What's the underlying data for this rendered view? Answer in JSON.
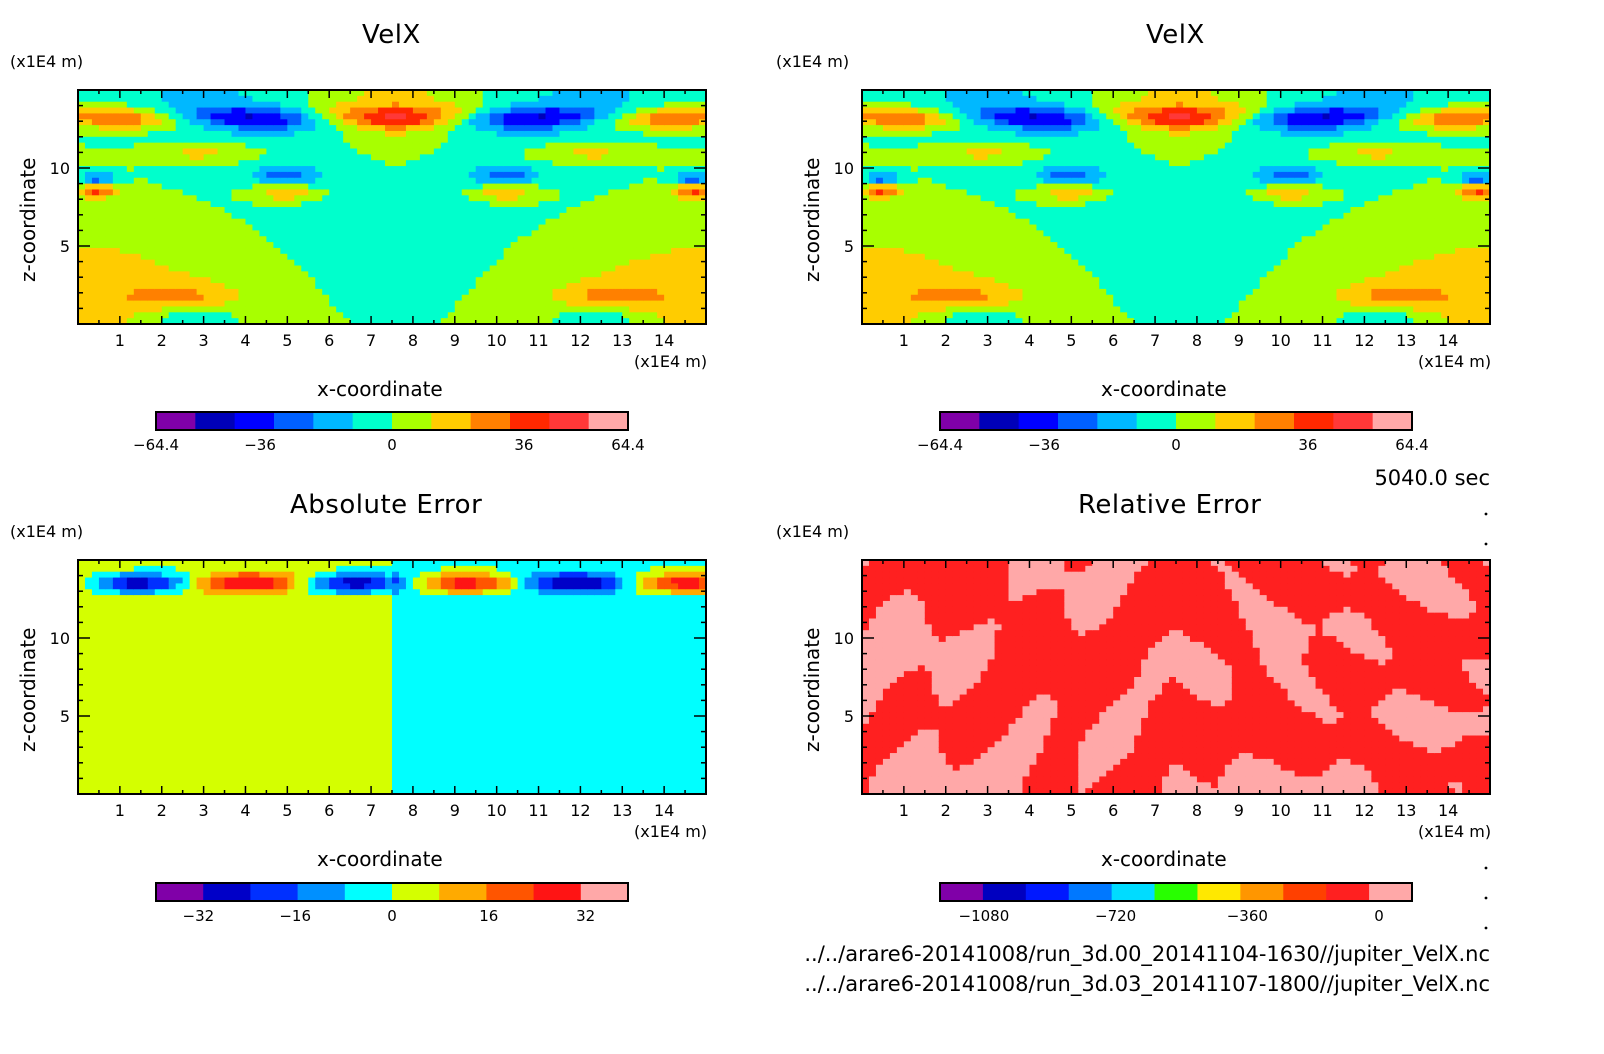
{
  "info": {
    "time_label": "5040.0 sec",
    "files": [
      "../../arare6-20141008/run_3d.00_20141104-1630//jupiter_VelX.nc",
      "../../arare6-20141008/run_3d.03_20141107-1800//jupiter_VelX.nc"
    ]
  },
  "chart_data": [
    {
      "type": "heatmap",
      "title": "VelX",
      "xlabel": "x-coordinate",
      "ylabel": "z-coordinate",
      "x_unit": "(x1E4 m)",
      "y_unit": "(x1E4 m)",
      "xlim": [
        0,
        15
      ],
      "ylim": [
        0,
        15
      ],
      "xticks": [
        1,
        2,
        3,
        4,
        5,
        6,
        7,
        8,
        9,
        10,
        11,
        12,
        13,
        14
      ],
      "yticks": [
        5,
        10
      ],
      "colorbar": {
        "ticks": [
          "-64.4",
          "-36",
          "0",
          "36",
          "64.4"
        ],
        "tick_values": [
          -64.4,
          -36,
          0,
          36,
          64.4
        ],
        "range": [
          -64.4,
          64.4
        ],
        "levels": [
          -64.4,
          -58,
          -45,
          -32,
          -19,
          -6,
          6,
          19,
          32,
          45,
          58,
          64.4
        ],
        "colors": [
          "#8000a8",
          "#0000b8",
          "#0000ff",
          "#0060ff",
          "#00b8ff",
          "#00ffcc",
          "#a8ff00",
          "#ffcc00",
          "#ff8000",
          "#ff2800",
          "#ff3838",
          "#ffa8a8"
        ]
      }
    },
    {
      "type": "heatmap",
      "title": "VelX",
      "xlabel": "x-coordinate",
      "ylabel": "z-coordinate",
      "x_unit": "(x1E4 m)",
      "y_unit": "(x1E4 m)",
      "xlim": [
        0,
        15
      ],
      "ylim": [
        0,
        15
      ],
      "xticks": [
        1,
        2,
        3,
        4,
        5,
        6,
        7,
        8,
        9,
        10,
        11,
        12,
        13,
        14
      ],
      "yticks": [
        5,
        10
      ],
      "colorbar": {
        "ticks": [
          "-64.4",
          "-36",
          "0",
          "36",
          "64.4"
        ],
        "tick_values": [
          -64.4,
          -36,
          0,
          36,
          64.4
        ],
        "range": [
          -64.4,
          64.4
        ],
        "levels": [
          -64.4,
          -58,
          -45,
          -32,
          -19,
          -6,
          6,
          19,
          32,
          45,
          58,
          64.4
        ],
        "colors": [
          "#8000a8",
          "#0000b8",
          "#0000ff",
          "#0060ff",
          "#00b8ff",
          "#00ffcc",
          "#a8ff00",
          "#ffcc00",
          "#ff8000",
          "#ff2800",
          "#ff3838",
          "#ffa8a8"
        ]
      }
    },
    {
      "type": "heatmap",
      "title": "Absolute Error",
      "xlabel": "x-coordinate",
      "ylabel": "z-coordinate",
      "x_unit": "(x1E4 m)",
      "y_unit": "(x1E4 m)",
      "xlim": [
        0,
        15
      ],
      "ylim": [
        0,
        15
      ],
      "xticks": [
        1,
        2,
        3,
        4,
        5,
        6,
        7,
        8,
        9,
        10,
        11,
        12,
        13,
        14
      ],
      "yticks": [
        5,
        10
      ],
      "colorbar": {
        "ticks": [
          "-32",
          "-16",
          "0",
          "16",
          "32"
        ],
        "tick_values": [
          -32,
          -16,
          0,
          16,
          32
        ],
        "range": [
          -39,
          39
        ],
        "levels": [
          -39,
          -35,
          -27,
          -19,
          -11,
          -3,
          5,
          13,
          21,
          29,
          37,
          41
        ],
        "colors": [
          "#8000a8",
          "#0000c8",
          "#0030ff",
          "#0090ff",
          "#00ffff",
          "#d4ff00",
          "#ffaa00",
          "#ff5500",
          "#ff1414",
          "#ffa8a8"
        ]
      }
    },
    {
      "type": "heatmap",
      "title": "Relative Error",
      "xlabel": "x-coordinate",
      "ylabel": "z-coordinate",
      "x_unit": "(x1E4 m)",
      "y_unit": "(x1E4 m)",
      "xlim": [
        0,
        15
      ],
      "ylim": [
        0,
        15
      ],
      "xticks": [
        1,
        2,
        3,
        4,
        5,
        6,
        7,
        8,
        9,
        10,
        11,
        12,
        13,
        14
      ],
      "yticks": [
        5,
        10
      ],
      "colorbar": {
        "ticks": [
          "-1080",
          "-720",
          "-360",
          "0"
        ],
        "tick_values": [
          -1080,
          -720,
          -360,
          0
        ],
        "range": [
          -1200,
          90
        ],
        "colors": [
          "#8000a8",
          "#0000c0",
          "#0018ff",
          "#0078ff",
          "#00dcff",
          "#28ff00",
          "#ffe800",
          "#ff9600",
          "#ff4000",
          "#ff2020",
          "#ffa8a8"
        ]
      }
    }
  ]
}
